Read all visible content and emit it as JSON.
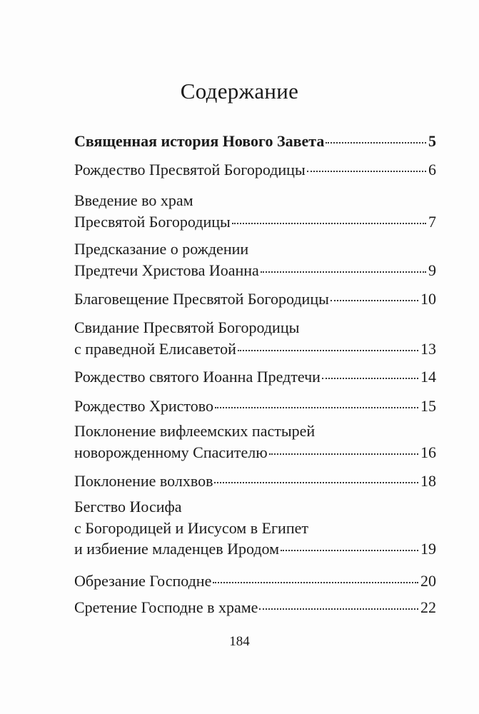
{
  "title": "Содержание",
  "entries": [
    {
      "lines": [
        "Священная история Нового Завета"
      ],
      "page": "5",
      "bold": true
    },
    {
      "lines": [
        "Рождество Пресвятой Богородицы"
      ],
      "page": "6"
    },
    {
      "lines": [
        "Введение во храм",
        "Пресвятой Богородицы"
      ],
      "page": "7"
    },
    {
      "lines": [
        "Предсказание о рождении",
        "Предтечи Христова Иоанна"
      ],
      "page": "9"
    },
    {
      "lines": [
        "Благовещение Пресвятой Богородицы"
      ],
      "page": "10"
    },
    {
      "lines": [
        "Свидание Пресвятой Богородицы",
        "с праведной Елисаветой"
      ],
      "page": "13"
    },
    {
      "lines": [
        "Рождество святого Иоанна Предтечи"
      ],
      "page": "14"
    },
    {
      "lines": [
        "Рождество Христово"
      ],
      "page": "15"
    },
    {
      "lines": [
        "Поклонение вифлеемских пастырей",
        "новорожденному Спасителю"
      ],
      "page": "16"
    },
    {
      "lines": [
        "Поклонение волхвов"
      ],
      "page": "18"
    },
    {
      "lines": [
        "Бегство Иосифа",
        "с Богородицей и Иисусом в Египет",
        "и избиение младенцев Иродом"
      ],
      "page": "19"
    },
    {
      "lines": [
        "Обрезание Господне"
      ],
      "page": "20"
    },
    {
      "lines": [
        "Сретение Господне в храме"
      ],
      "page": "22"
    }
  ],
  "page_number": "184"
}
